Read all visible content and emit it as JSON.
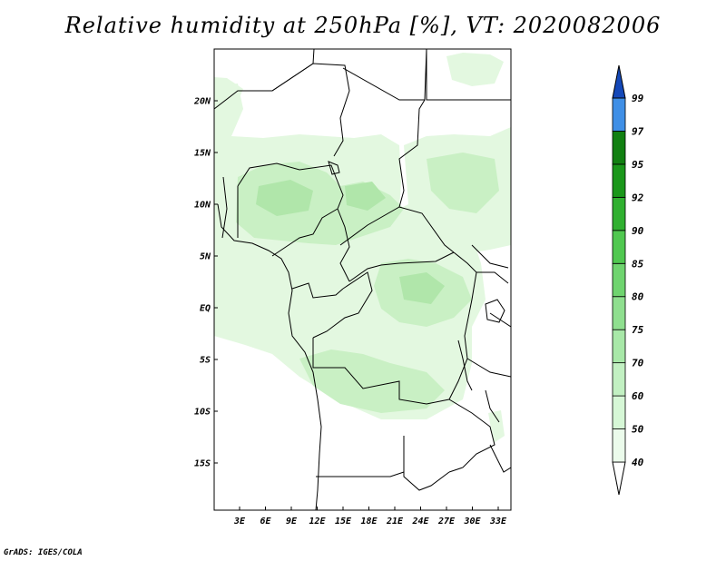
{
  "title": "Relative humidity at 250hPa [%], VT: 2020082006",
  "footer": "GrADS: IGES/COLA",
  "map": {
    "lon_labels": [
      "3E",
      "6E",
      "9E",
      "12E",
      "15E",
      "18E",
      "21E",
      "24E",
      "27E",
      "30E",
      "33E"
    ],
    "lat_labels": [
      "20N",
      "15N",
      "10N",
      "5N",
      "EQ",
      "5S",
      "10S",
      "15S"
    ]
  },
  "colorbar": {
    "levels": [
      "40",
      "50",
      "60",
      "70",
      "75",
      "80",
      "85",
      "90",
      "92",
      "95",
      "97",
      "99"
    ],
    "colors": [
      "#ebfbeb",
      "#d6f7d6",
      "#c2f0c2",
      "#a8e8a8",
      "#8fdf8f",
      "#6fd46f",
      "#50c850",
      "#30b030",
      "#1a971a",
      "#118011",
      "#3f8fe6",
      "#2068d8",
      "#1448b8"
    ]
  },
  "fill_colors": {
    "light": "#e3f8e0",
    "medium": "#c9f0c4",
    "dark": "#b0e6aa"
  }
}
